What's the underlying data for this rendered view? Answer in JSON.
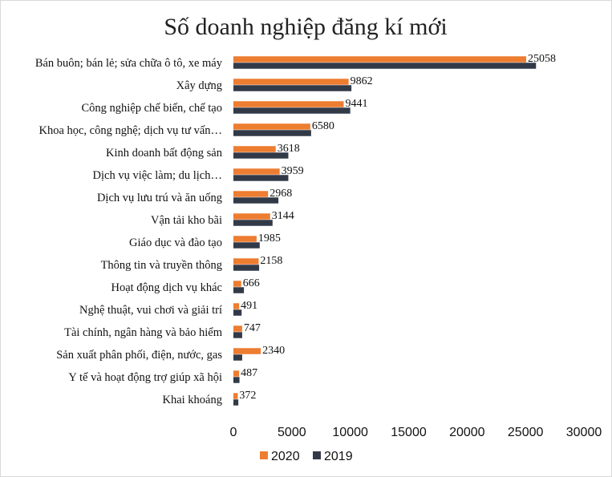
{
  "chart_data": {
    "type": "bar",
    "orientation": "horizontal",
    "title": "Số doanh nghiệp đăng kí mới",
    "xlabel": "",
    "ylabel": "",
    "xlim": [
      0,
      30000
    ],
    "x_ticks": [
      0,
      5000,
      10000,
      15000,
      20000,
      25000,
      30000
    ],
    "grid": false,
    "legend_position": "bottom",
    "categories": [
      "Bán buôn; bán lẻ; sửa chữa ô tô, xe máy",
      "Xây dựng",
      "Công nghiệp chế biến, chế tạo",
      "Khoa học, công nghệ; dịch vụ tư vấn…",
      "Kinh doanh bất động sản",
      "Dịch vụ việc làm; du lịch…",
      "Dịch vụ lưu trú và ăn uống",
      "Vận tải kho bãi",
      "Giáo dục và đào tạo",
      "Thông tin và truyền thông",
      "Hoạt động dịch vụ khác",
      "Nghệ thuật, vui chơi và giải trí",
      "Tài chính, ngân hàng và bảo hiểm",
      "Sản xuất phân phối, điện, nước, gas",
      "Y tế và hoạt động trợ giúp xã hội",
      "Khai khoáng"
    ],
    "series": [
      {
        "name": "2020",
        "color": "#ed7d31",
        "values": [
          25058,
          9862,
          9441,
          6580,
          3618,
          3959,
          2968,
          3144,
          1985,
          2158,
          666,
          491,
          747,
          2340,
          487,
          372
        ]
      },
      {
        "name": "2019",
        "color": "#323a48",
        "values": [
          25900,
          10100,
          10000,
          6650,
          4700,
          4700,
          3850,
          3350,
          2250,
          2200,
          900,
          700,
          750,
          750,
          520,
          420
        ]
      }
    ],
    "data_labels_series": "2020"
  }
}
